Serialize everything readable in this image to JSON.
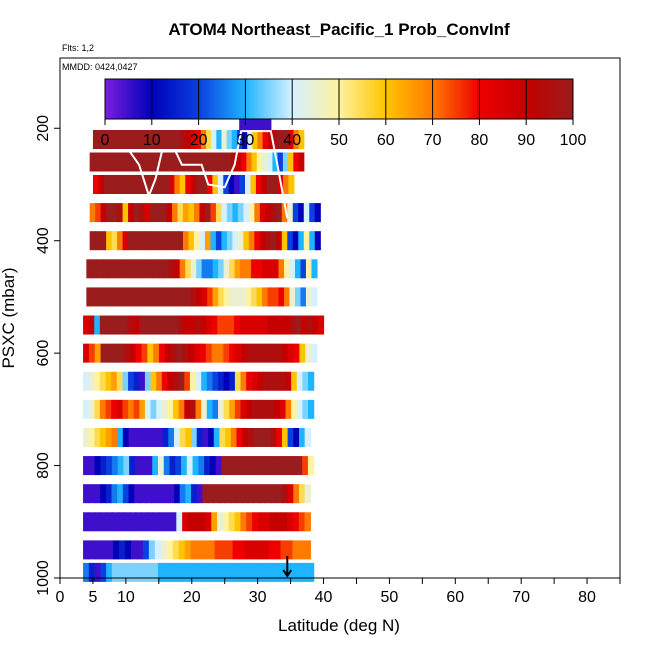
{
  "chart_data": {
    "type": "heatmap",
    "title": "ATOM4 Northeast_Pacific_1 Prob_ConvInf",
    "flights_note": "Flts: 1,2",
    "dates_note": "MMDD: 0424,0427",
    "xlabel": "Latitude (deg N)",
    "ylabel": "PSXC (mbar)",
    "xlim": [
      0,
      85
    ],
    "ylim": [
      1000,
      75
    ],
    "x_ticks": [
      0,
      5,
      10,
      20,
      30,
      40,
      50,
      60,
      70,
      80
    ],
    "y_ticks": [
      200,
      400,
      600,
      800,
      1000
    ],
    "colorbar": {
      "min": 0,
      "max": 100,
      "ticks": [
        0,
        10,
        20,
        30,
        40,
        50,
        60,
        70,
        80,
        90,
        100
      ],
      "colors": [
        "#7b1fe0",
        "#0000b8",
        "#0a3fe0",
        "#1fb4ff",
        "#d6f0ff",
        "#fff2a0",
        "#ffc400",
        "#ff7a00",
        "#ee0000",
        "#c40000",
        "#9a1c1c"
      ]
    },
    "pressure_bins": [
      {
        "p": 200,
        "lat_range": [
          27.2,
          32.0
        ],
        "values": [
          5,
          5,
          5,
          5,
          5,
          5,
          5,
          5,
          5,
          5,
          5,
          5
        ]
      },
      {
        "p": 220,
        "lat_range": [
          5.0,
          37.0
        ],
        "values": [
          100,
          100,
          100,
          100,
          100,
          100,
          100,
          100,
          100,
          100,
          100,
          100,
          100,
          100,
          100,
          100,
          100,
          95,
          90,
          85,
          80,
          70,
          55,
          40,
          30,
          45,
          35,
          30,
          20,
          10,
          40,
          60,
          70,
          80,
          90,
          95,
          100,
          100,
          85,
          70,
          60
        ]
      },
      {
        "p": 260,
        "lat_range": [
          4.5,
          37.0
        ],
        "values": [
          100,
          100,
          100,
          100,
          100,
          100,
          100,
          100,
          100,
          100,
          100,
          100,
          100,
          100,
          100,
          100,
          100,
          100,
          100,
          100,
          100,
          100,
          100,
          100,
          100,
          100,
          100,
          95,
          90,
          80,
          70,
          60,
          50,
          45,
          40,
          30,
          20,
          35,
          60,
          80,
          90
        ]
      },
      {
        "p": 300,
        "lat_range": [
          5.0,
          35.5
        ],
        "values": [
          80,
          90,
          100,
          100,
          100,
          100,
          100,
          100,
          100,
          100,
          100,
          100,
          100,
          100,
          85,
          70,
          60,
          80,
          90,
          100,
          100,
          80,
          60,
          40,
          20,
          10,
          5,
          20,
          40,
          60,
          80,
          90,
          100,
          100,
          85,
          70,
          60
        ]
      },
      {
        "p": 350,
        "lat_range": [
          4.5,
          39.5
        ],
        "values": [
          70,
          75,
          90,
          100,
          100,
          95,
          60,
          90,
          100,
          95,
          85,
          100,
          100,
          100,
          90,
          70,
          55,
          65,
          60,
          70,
          90,
          100,
          75,
          55,
          40,
          35,
          30,
          35,
          40,
          50,
          70,
          85,
          90,
          95,
          100,
          70,
          45,
          20,
          10,
          40,
          20,
          10
        ]
      },
      {
        "p": 400,
        "lat_range": [
          4.5,
          39.5
        ],
        "values": [
          100,
          100,
          100,
          60,
          55,
          70,
          85,
          100,
          100,
          100,
          100,
          100,
          100,
          100,
          100,
          100,
          100,
          70,
          60,
          50,
          40,
          65,
          30,
          20,
          30,
          35,
          40,
          45,
          60,
          70,
          80,
          90,
          95,
          100,
          90,
          60,
          20,
          10,
          30,
          50,
          30,
          10
        ]
      },
      {
        "p": 450,
        "lat_range": [
          4.0,
          39.0
        ],
        "values": [
          100,
          100,
          100,
          100,
          100,
          100,
          100,
          100,
          100,
          100,
          100,
          100,
          100,
          100,
          100,
          95,
          90,
          70,
          55,
          45,
          35,
          25,
          25,
          30,
          35,
          45,
          55,
          65,
          70,
          70,
          80,
          80,
          85,
          85,
          85,
          70,
          50,
          40,
          30,
          20,
          50,
          30
        ]
      },
      {
        "p": 500,
        "lat_range": [
          4.0,
          39.0
        ],
        "values": [
          100,
          100,
          100,
          100,
          100,
          100,
          100,
          100,
          100,
          100,
          100,
          100,
          100,
          100,
          100,
          100,
          100,
          100,
          100,
          95,
          90,
          85,
          75,
          65,
          55,
          50,
          45,
          45,
          45,
          50,
          55,
          60,
          70,
          75,
          75,
          80,
          70,
          45,
          35,
          25,
          45,
          40
        ]
      },
      {
        "p": 550,
        "lat_range": [
          3.5,
          40.0
        ],
        "values": [
          85,
          90,
          30,
          100,
          100,
          100,
          100,
          100,
          95,
          90,
          100,
          100,
          100,
          100,
          100,
          100,
          100,
          95,
          90,
          90,
          95,
          90,
          85,
          80,
          75,
          75,
          75,
          80,
          85,
          85,
          85,
          85,
          85,
          90,
          90,
          90,
          90,
          95,
          100,
          90,
          95,
          90,
          85
        ]
      },
      {
        "p": 600,
        "lat_range": [
          3.5,
          39.0
        ],
        "values": [
          85,
          75,
          65,
          100,
          100,
          100,
          100,
          95,
          90,
          80,
          75,
          60,
          70,
          80,
          90,
          95,
          100,
          95,
          90,
          85,
          80,
          75,
          70,
          70,
          75,
          80,
          85,
          90,
          95,
          95,
          95,
          95,
          95,
          95,
          90,
          85,
          80,
          60,
          45,
          40
        ]
      },
      {
        "p": 650,
        "lat_range": [
          3.5,
          38.5
        ],
        "values": [
          40,
          45,
          50,
          55,
          60,
          65,
          55,
          35,
          20,
          15,
          5,
          35,
          60,
          70,
          80,
          90,
          95,
          100,
          75,
          50,
          40,
          30,
          25,
          20,
          15,
          10,
          15,
          55,
          70,
          80,
          85,
          90,
          95,
          95,
          95,
          95,
          90,
          60,
          40,
          35,
          30
        ]
      },
      {
        "p": 700,
        "lat_range": [
          3.5,
          38.5
        ],
        "values": [
          40,
          45,
          55,
          70,
          75,
          80,
          85,
          75,
          70,
          75,
          65,
          40,
          35,
          40,
          45,
          50,
          60,
          70,
          90,
          95,
          70,
          45,
          30,
          25,
          45,
          55,
          65,
          75,
          85,
          90,
          95,
          95,
          95,
          95,
          90,
          85,
          70,
          50,
          40,
          35,
          30
        ]
      },
      {
        "p": 750,
        "lat_range": [
          3.5,
          38.0
        ],
        "values": [
          45,
          50,
          55,
          60,
          65,
          70,
          30,
          10,
          5,
          5,
          5,
          5,
          5,
          5,
          15,
          25,
          40,
          55,
          60,
          35,
          15,
          5,
          10,
          30,
          55,
          60,
          70,
          80,
          90,
          95,
          100,
          100,
          100,
          95,
          80,
          60,
          20,
          10,
          30,
          40
        ]
      },
      {
        "p": 800,
        "lat_range": [
          3.5,
          38.5
        ],
        "values": [
          5,
          5,
          10,
          15,
          20,
          25,
          30,
          35,
          15,
          5,
          5,
          5,
          30,
          45,
          25,
          15,
          20,
          30,
          40,
          30,
          25,
          15,
          10,
          5,
          100,
          100,
          100,
          100,
          100,
          100,
          100,
          100,
          100,
          100,
          100,
          100,
          100,
          100,
          75,
          50
        ]
      },
      {
        "p": 850,
        "lat_range": [
          3.5,
          38.0
        ],
        "values": [
          5,
          5,
          5,
          10,
          15,
          25,
          30,
          20,
          10,
          5,
          5,
          5,
          5,
          5,
          5,
          5,
          10,
          25,
          30,
          15,
          5,
          100,
          100,
          100,
          100,
          100,
          100,
          100,
          100,
          100,
          100,
          100,
          100,
          100,
          100,
          95,
          85,
          70,
          55,
          45
        ]
      },
      {
        "p": 900,
        "lat_range": [
          3.5,
          38.0
        ],
        "values": [
          5,
          5,
          5,
          5,
          5,
          5,
          5,
          5,
          5,
          5,
          5,
          5,
          5,
          5,
          5,
          5,
          40,
          85,
          90,
          90,
          90,
          85,
          65,
          45,
          50,
          55,
          60,
          70,
          75,
          80,
          85,
          85,
          90,
          90,
          90,
          85,
          80,
          75,
          70
        ]
      },
      {
        "p": 950,
        "lat_range": [
          3.5,
          38.0
        ],
        "values": [
          5,
          5,
          5,
          5,
          5,
          10,
          15,
          10,
          5,
          5,
          20,
          35,
          40,
          45,
          50,
          55,
          60,
          65,
          70,
          70,
          70,
          70,
          75,
          75,
          75,
          80,
          80,
          85,
          85,
          85,
          85,
          80,
          80,
          75,
          75,
          70,
          70,
          70
        ]
      },
      {
        "p": 990,
        "lat_range": [
          3.5,
          38.5
        ],
        "values": [
          25,
          15,
          5,
          20,
          30,
          35,
          35,
          35,
          35,
          35,
          35,
          35,
          35,
          30,
          30,
          30,
          30,
          30,
          30,
          30,
          30,
          30,
          30,
          30,
          30,
          30,
          30,
          30,
          30,
          30,
          30,
          30,
          30,
          30,
          30,
          30,
          30,
          30,
          30,
          30
        ]
      }
    ],
    "flight_track": {
      "description_values_lat_p": [
        [
          4.5,
          240
        ],
        [
          10.5,
          240
        ],
        [
          12,
          265
        ],
        [
          13.5,
          320
        ],
        [
          14.5,
          290
        ],
        [
          15.5,
          240
        ],
        [
          17.5,
          240
        ],
        [
          18.5,
          265
        ],
        [
          21.5,
          265
        ],
        [
          22.5,
          300
        ],
        [
          25,
          305
        ],
        [
          26.5,
          265
        ],
        [
          27.5,
          205
        ],
        [
          32,
          205
        ],
        [
          33,
          265
        ],
        [
          34.5,
          360
        ]
      ],
      "color": "#ffffff"
    },
    "marker": {
      "lat": 34.5,
      "p": 1000,
      "symbol": "down-arrow"
    }
  }
}
